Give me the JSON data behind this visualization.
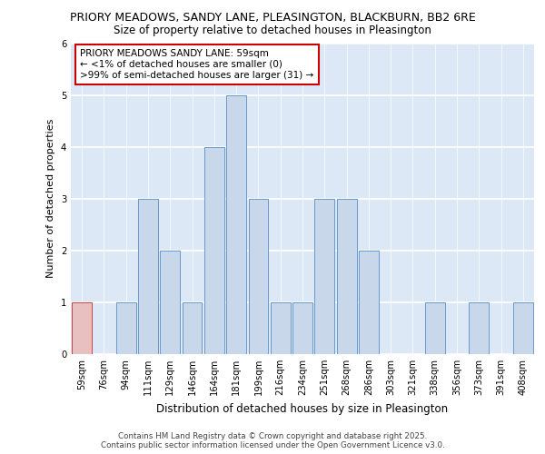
{
  "title_line1": "PRIORY MEADOWS, SANDY LANE, PLEASINGTON, BLACKBURN, BB2 6RE",
  "title_line2": "Size of property relative to detached houses in Pleasington",
  "xlabel": "Distribution of detached houses by size in Pleasington",
  "ylabel": "Number of detached properties",
  "categories": [
    "59sqm",
    "76sqm",
    "94sqm",
    "111sqm",
    "129sqm",
    "146sqm",
    "164sqm",
    "181sqm",
    "199sqm",
    "216sqm",
    "234sqm",
    "251sqm",
    "268sqm",
    "286sqm",
    "303sqm",
    "321sqm",
    "338sqm",
    "356sqm",
    "373sqm",
    "391sqm",
    "408sqm"
  ],
  "values": [
    1,
    0,
    1,
    3,
    2,
    1,
    4,
    5,
    3,
    1,
    1,
    3,
    3,
    2,
    0,
    0,
    1,
    0,
    1,
    0,
    1
  ],
  "bar_color": "#c8d8ea",
  "bar_edge_color": "#6699cc",
  "highlight_bar_color": "#e8c0c0",
  "highlight_bar_edge_color": "#cc4444",
  "highlight_index": 0,
  "background_color": "#dce8f5",
  "grid_color": "#ffffff",
  "annotation_text": "PRIORY MEADOWS SANDY LANE: 59sqm\n← <1% of detached houses are smaller (0)\n>99% of semi-detached houses are larger (31) →",
  "annotation_box_facecolor": "#ffffff",
  "annotation_box_edgecolor": "#cc0000",
  "footer_line1": "Contains HM Land Registry data © Crown copyright and database right 2025.",
  "footer_line2": "Contains public sector information licensed under the Open Government Licence v3.0.",
  "ylim": [
    0,
    6
  ],
  "yticks": [
    0,
    1,
    2,
    3,
    4,
    5,
    6
  ]
}
